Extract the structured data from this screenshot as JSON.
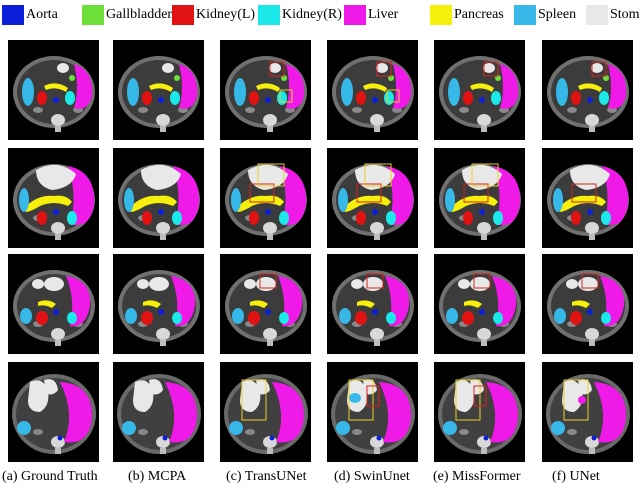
{
  "legend": [
    {
      "label": "Aorta",
      "color": "#0b1fd8"
    },
    {
      "label": "Gallbladder",
      "color": "#6ee03a"
    },
    {
      "label": "Kidney(L)",
      "color": "#e01212"
    },
    {
      "label": "Kidney(R)",
      "color": "#1be8e8"
    },
    {
      "label": "Liver",
      "color": "#f01ae8"
    },
    {
      "label": "Pancreas",
      "color": "#f6f00c"
    },
    {
      "label": "Spleen",
      "color": "#36b8e8"
    },
    {
      "label": "Stomach",
      "color": "#e8e8e8"
    }
  ],
  "columns": [
    {
      "caption": "(a) Ground Truth"
    },
    {
      "caption": "(b) MCPA"
    },
    {
      "caption": "(c) TransUNet"
    },
    {
      "caption": "(d) SwinUnet"
    },
    {
      "caption": "(e) MissFormer"
    },
    {
      "caption": "(f) UNet"
    }
  ],
  "rows": 4,
  "highlight_color": "#d82020",
  "highlight_color_alt": "#e8d020"
}
